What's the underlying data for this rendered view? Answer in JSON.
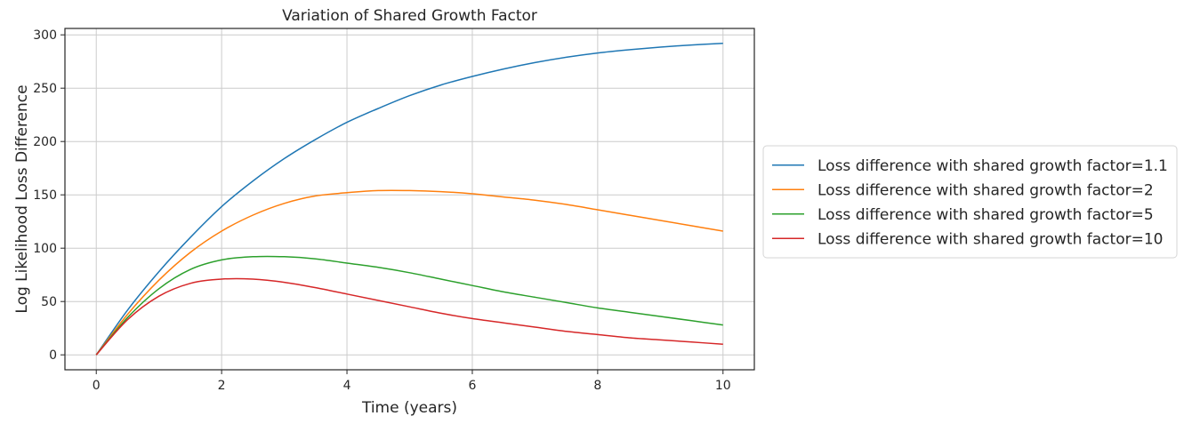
{
  "chart_data": {
    "type": "line",
    "title": "Variation of Shared Growth Factor",
    "xlabel": "Time (years)",
    "ylabel": "Log Likelihood Loss Difference",
    "xlim": [
      -0.5,
      10.5
    ],
    "ylim": [
      -14,
      306
    ],
    "xticks": [
      0,
      2,
      4,
      6,
      8,
      10
    ],
    "yticks": [
      0,
      50,
      100,
      150,
      200,
      250,
      300
    ],
    "grid": true,
    "legend_position": "outside-right",
    "x": [
      0,
      0.5,
      1,
      1.5,
      2,
      2.5,
      3,
      3.5,
      4,
      4.5,
      5,
      5.5,
      6,
      6.5,
      7,
      7.5,
      8,
      8.5,
      9,
      9.5,
      10
    ],
    "series": [
      {
        "name": "Loss difference with shared growth factor=1.1",
        "color": "#1f77b4",
        "values": [
          0,
          42,
          78,
          110,
          139,
          163,
          184,
          202,
          218,
          231,
          243,
          253,
          261,
          268,
          274,
          279,
          283,
          286,
          288.5,
          290.5,
          292
        ]
      },
      {
        "name": "Loss difference with shared growth factor=2",
        "color": "#ff7f0e",
        "values": [
          0,
          38,
          70,
          96,
          116,
          131,
          142,
          149,
          152,
          154,
          154,
          153,
          151,
          148,
          145,
          141,
          136,
          131,
          126,
          121,
          116
        ]
      },
      {
        "name": "Loss difference with shared growth factor=5",
        "color": "#2ca02c",
        "values": [
          0,
          35,
          62,
          80,
          89,
          92,
          92,
          90,
          86,
          82,
          77,
          71,
          65,
          59,
          54,
          49,
          44,
          40,
          36,
          32,
          28
        ]
      },
      {
        "name": "Loss difference with shared growth factor=10",
        "color": "#d62728",
        "values": [
          0,
          33,
          55,
          67,
          71,
          71,
          68,
          63,
          57,
          51,
          45,
          39,
          34,
          30,
          26,
          22,
          19,
          16,
          14,
          12,
          10
        ]
      }
    ]
  }
}
